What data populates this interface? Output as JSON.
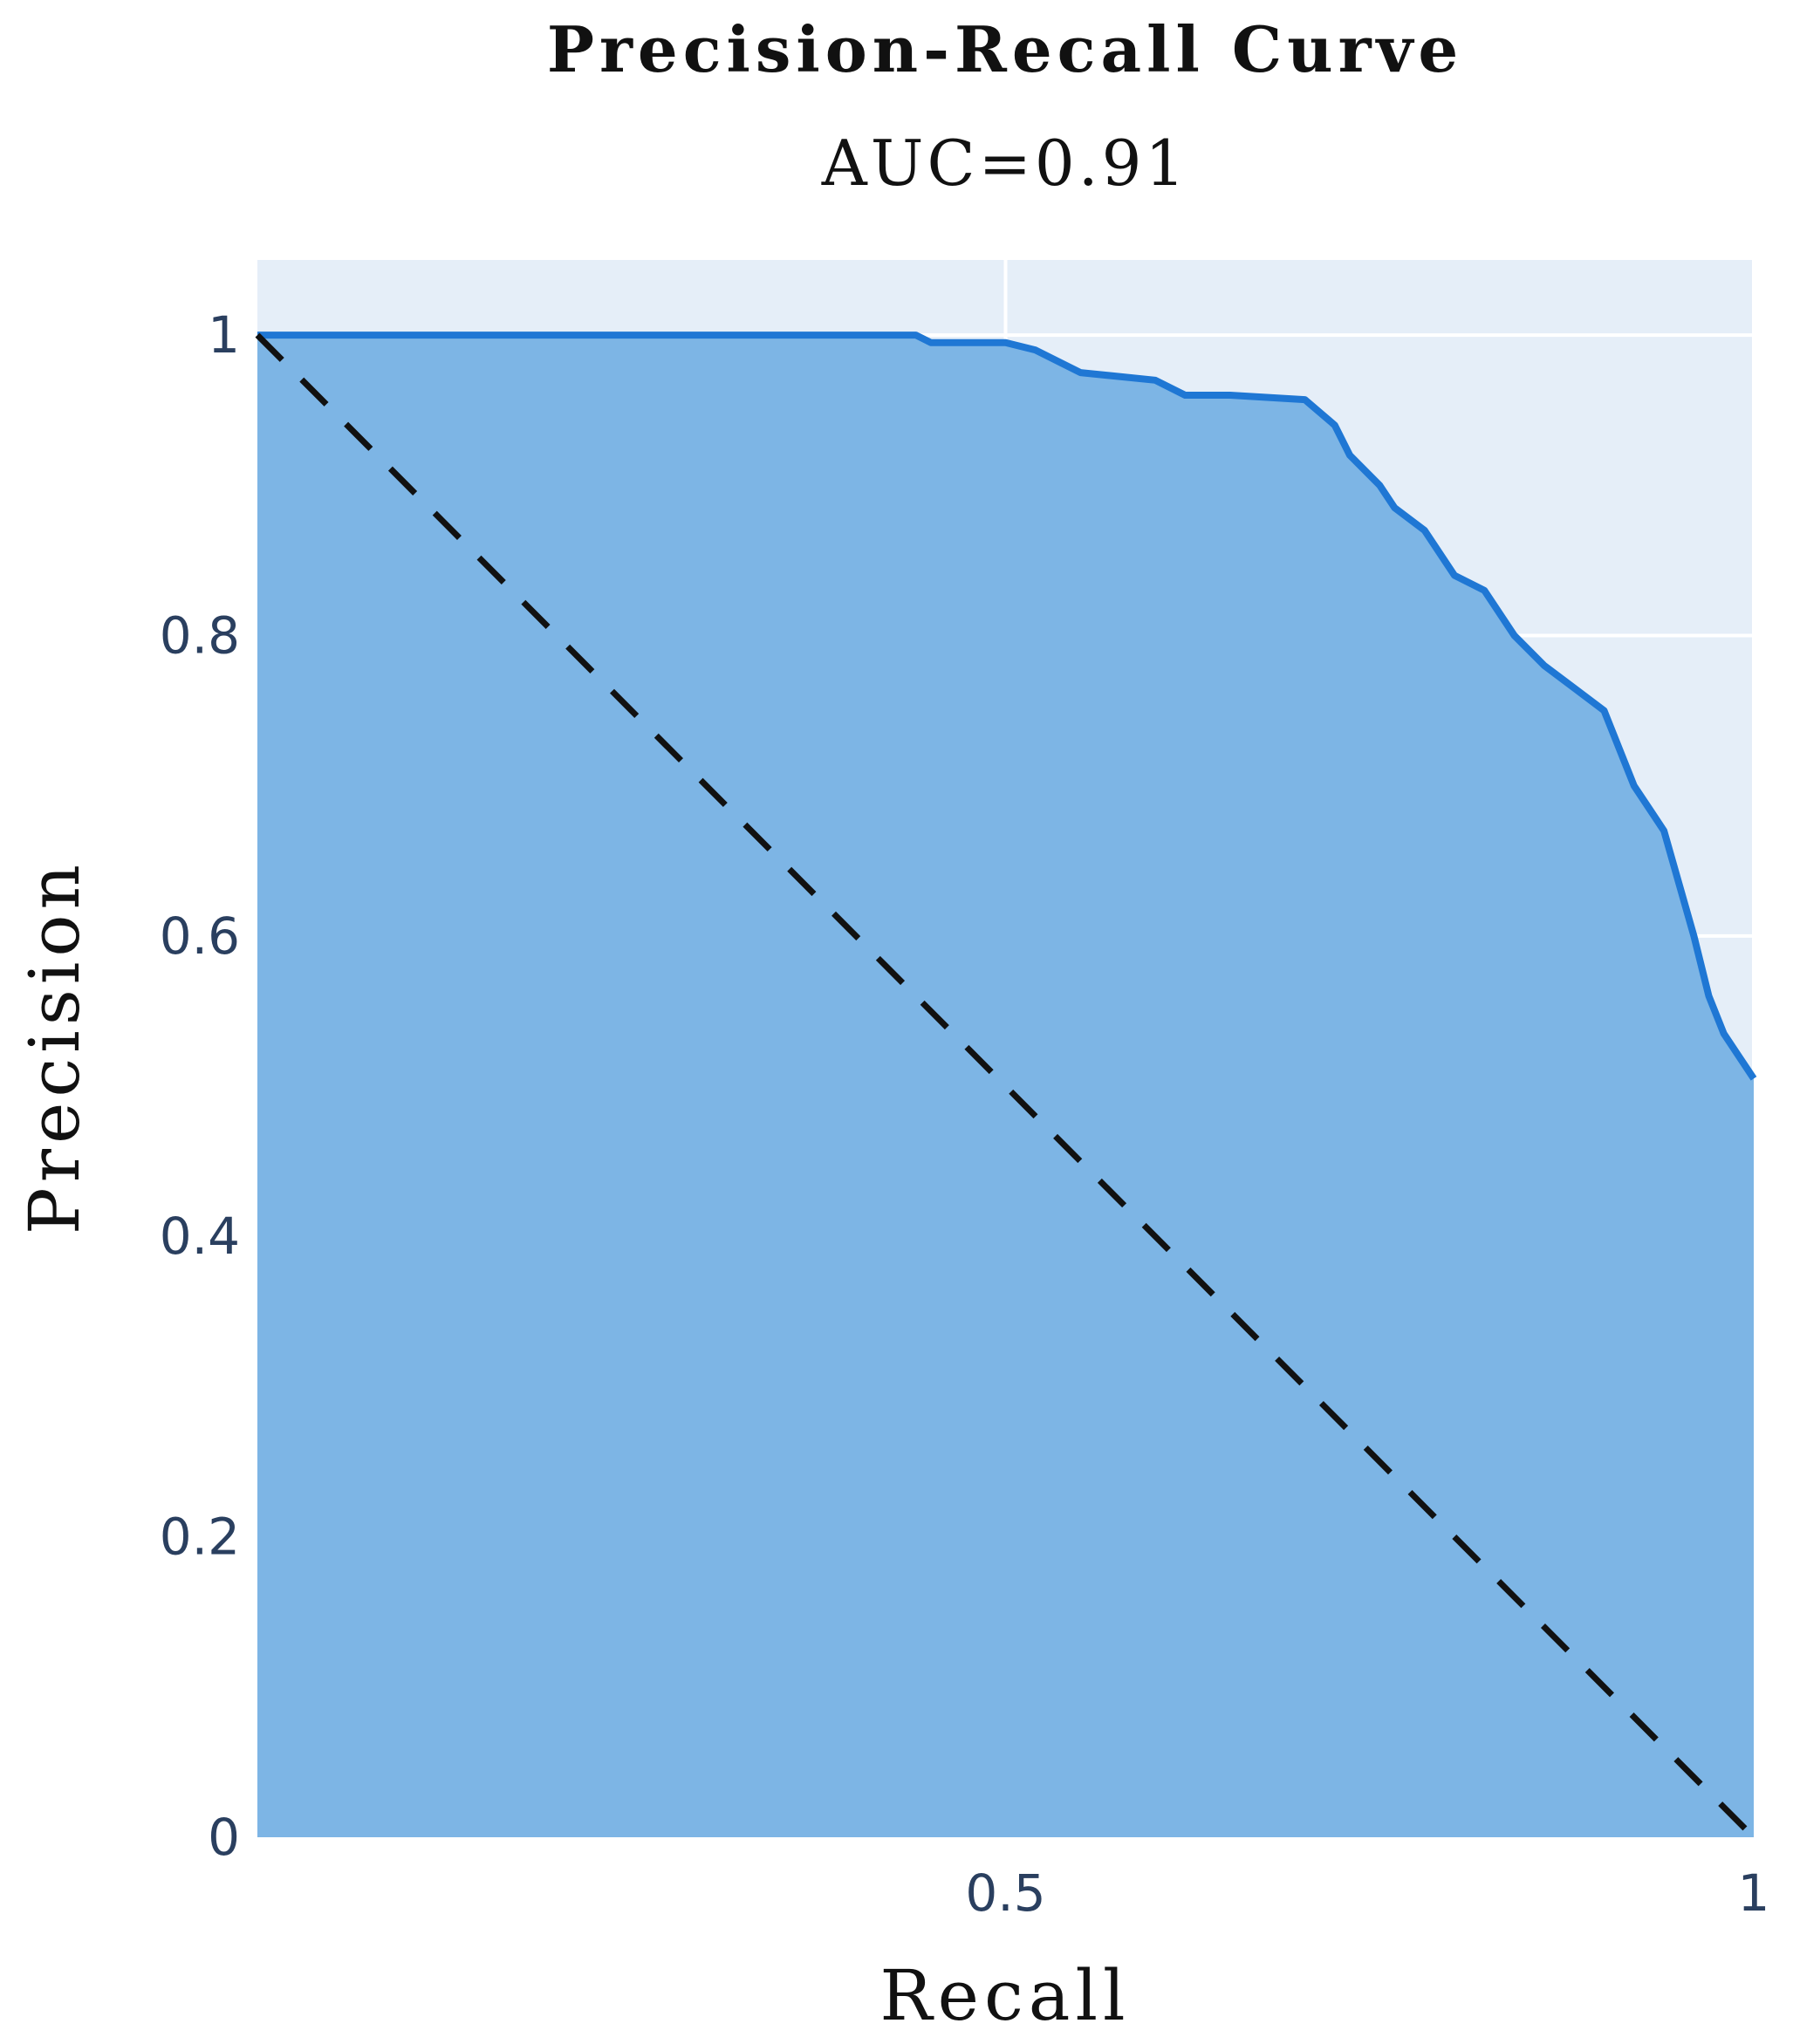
{
  "chart_data": {
    "type": "area",
    "title": "Precision-Recall Curve",
    "subtitle": "AUC=0.91",
    "xlabel": "Recall",
    "ylabel": "Precision",
    "xlim": [
      0,
      1
    ],
    "ylim": [
      0,
      1.05
    ],
    "grid": true,
    "x_ticks": [
      {
        "value": 0.5,
        "label": "0.5"
      },
      {
        "value": 1,
        "label": "1"
      }
    ],
    "y_ticks": [
      {
        "value": 0,
        "label": "0"
      },
      {
        "value": 0.2,
        "label": "0.2"
      },
      {
        "value": 0.4,
        "label": "0.4"
      },
      {
        "value": 0.6,
        "label": "0.6"
      },
      {
        "value": 0.8,
        "label": "0.8"
      },
      {
        "value": 1,
        "label": "1"
      }
    ],
    "series": [
      {
        "kind": "pr-curve",
        "x": [
          0,
          0.1,
          0.2,
          0.3,
          0.44,
          0.45,
          0.5,
          0.52,
          0.55,
          0.6,
          0.62,
          0.65,
          0.7,
          0.72,
          0.73,
          0.75,
          0.76,
          0.78,
          0.8,
          0.82,
          0.84,
          0.86,
          0.88,
          0.9,
          0.92,
          0.93,
          0.94,
          0.96,
          0.97,
          0.98,
          0.99,
          1.0
        ],
        "y": [
          1.0,
          1.0,
          1.0,
          1.0,
          1.0,
          0.995,
          0.995,
          0.99,
          0.975,
          0.97,
          0.96,
          0.96,
          0.957,
          0.94,
          0.92,
          0.9,
          0.885,
          0.87,
          0.84,
          0.83,
          0.8,
          0.78,
          0.765,
          0.75,
          0.7,
          0.685,
          0.67,
          0.6,
          0.56,
          0.535,
          0.52,
          0.505
        ],
        "color": "#1f77d4",
        "fill": "#7db5e5"
      },
      {
        "kind": "baseline",
        "x": [
          0,
          1
        ],
        "y": [
          1,
          0
        ],
        "color": "#111111",
        "dash": "dashed"
      }
    ]
  },
  "colors": {
    "plot_background": "#e5eef8",
    "gridline": "#ffffff",
    "curve": "#1f77d4",
    "curve_fill": "#7db5e5",
    "baseline": "#111111"
  }
}
